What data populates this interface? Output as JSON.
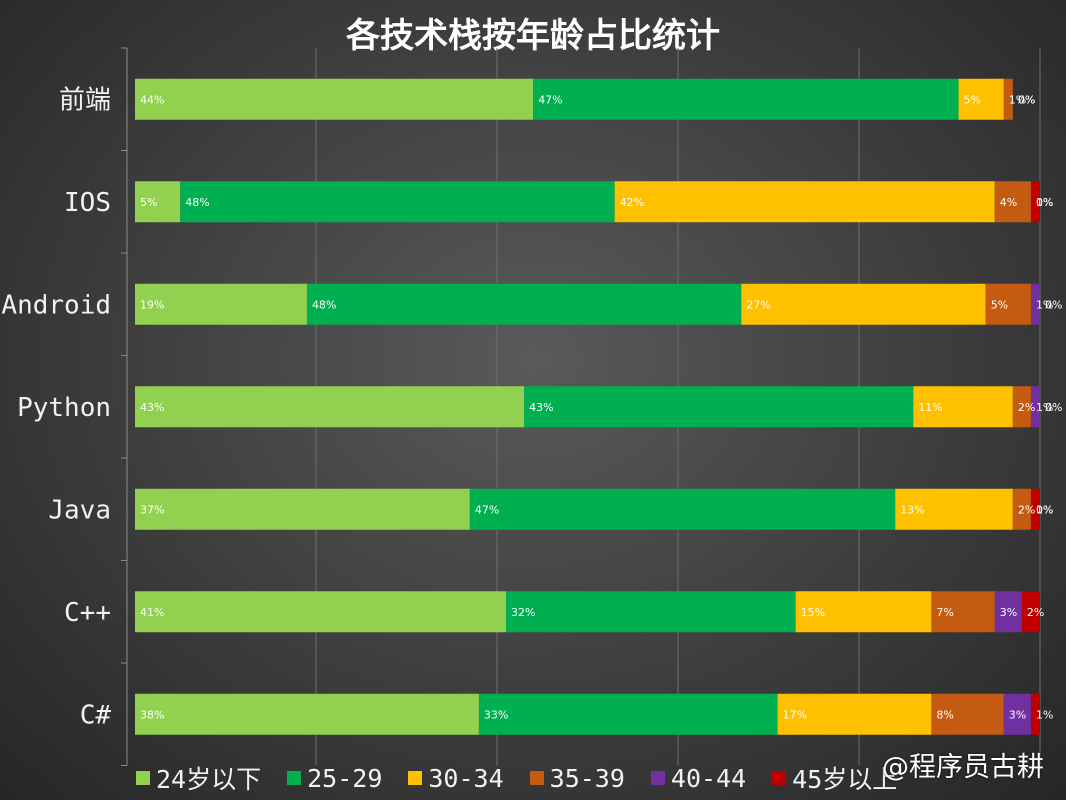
{
  "title": "各技术栈按年龄占比统计",
  "watermark": "@程序员古耕",
  "chart_data": {
    "type": "bar",
    "orientation": "horizontal",
    "stacked": "100%",
    "title": "各技术栈按年龄占比统计",
    "categories": [
      "前端",
      "IOS",
      "Android",
      "Python",
      "Java",
      "C++",
      "C#"
    ],
    "series": [
      {
        "name": "24岁以下",
        "color": "#92d050",
        "values": [
          44,
          5,
          19,
          43,
          37,
          41,
          38
        ],
        "labels": [
          "44%",
          "5%",
          "19%",
          "43%",
          "37%",
          "41%",
          "38%"
        ]
      },
      {
        "name": "25-29",
        "color": "#00b050",
        "values": [
          47,
          48,
          48,
          43,
          47,
          32,
          33
        ],
        "labels": [
          "47%",
          "48%",
          "48%",
          "43%",
          "47%",
          "32%",
          "33%"
        ]
      },
      {
        "name": "30-34",
        "color": "#ffc000",
        "values": [
          5,
          42,
          27,
          11,
          13,
          15,
          17
        ],
        "labels": [
          "5%",
          "42%",
          "27%",
          "11%",
          "13%",
          "15%",
          "17%"
        ]
      },
      {
        "name": "35-39",
        "color": "#c55a11",
        "values": [
          1,
          4,
          5,
          2,
          2,
          7,
          8
        ],
        "labels": [
          "1%",
          "4%",
          "5%",
          "2%",
          "2%",
          "7%",
          "8%"
        ]
      },
      {
        "name": "40-44",
        "color": "#7030a0",
        "values": [
          0,
          0,
          1,
          1,
          0,
          3,
          3
        ],
        "labels": [
          "0%",
          "0%",
          "1%",
          "1%",
          "0%",
          "3%",
          "3%"
        ]
      },
      {
        "name": "45岁以上",
        "color": "#c00000",
        "values": [
          0,
          1,
          0,
          0,
          1,
          2,
          1
        ],
        "labels": [
          "0%",
          "1%",
          "0%",
          "0%",
          "1%",
          "2%",
          "1%"
        ]
      }
    ],
    "xlim": [
      0,
      100
    ],
    "grid": true,
    "legend": "bottom"
  }
}
